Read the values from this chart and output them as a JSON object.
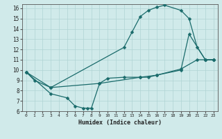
{
  "xlabel": "Humidex (Indice chaleur)",
  "bg_color": "#d0eaea",
  "grid_color": "#b0d4d4",
  "line_color": "#1a6b6b",
  "xlim": [
    -0.5,
    23.5
  ],
  "ylim": [
    6,
    16.4
  ],
  "xticks": [
    0,
    1,
    2,
    3,
    4,
    5,
    6,
    7,
    8,
    9,
    10,
    11,
    12,
    13,
    14,
    15,
    16,
    17,
    18,
    19,
    20,
    21,
    22,
    23
  ],
  "yticks": [
    6,
    7,
    8,
    9,
    10,
    11,
    12,
    13,
    14,
    15,
    16
  ],
  "line1_x": [
    0,
    1,
    3,
    12,
    13,
    14,
    15,
    16,
    17,
    19,
    20,
    21,
    22,
    23
  ],
  "line1_y": [
    9.8,
    9.0,
    8.3,
    12.2,
    13.7,
    15.2,
    15.8,
    16.1,
    16.3,
    15.8,
    15.0,
    12.2,
    11.0,
    11.0
  ],
  "line2_x": [
    0,
    3,
    5,
    6,
    7,
    7.5,
    8,
    9,
    10,
    12,
    14,
    15,
    16,
    19,
    21,
    22,
    23
  ],
  "line2_y": [
    9.8,
    7.7,
    7.3,
    6.5,
    6.3,
    6.3,
    6.3,
    8.7,
    9.2,
    9.3,
    9.3,
    9.3,
    9.5,
    10.1,
    11.0,
    11.0,
    11.0
  ],
  "line3_x": [
    0,
    3,
    9,
    14,
    16,
    19,
    20,
    22,
    23
  ],
  "line3_y": [
    9.8,
    8.3,
    8.7,
    9.3,
    9.5,
    10.0,
    13.5,
    11.0,
    11.0
  ],
  "markersize": 2.5,
  "linewidth": 0.9
}
